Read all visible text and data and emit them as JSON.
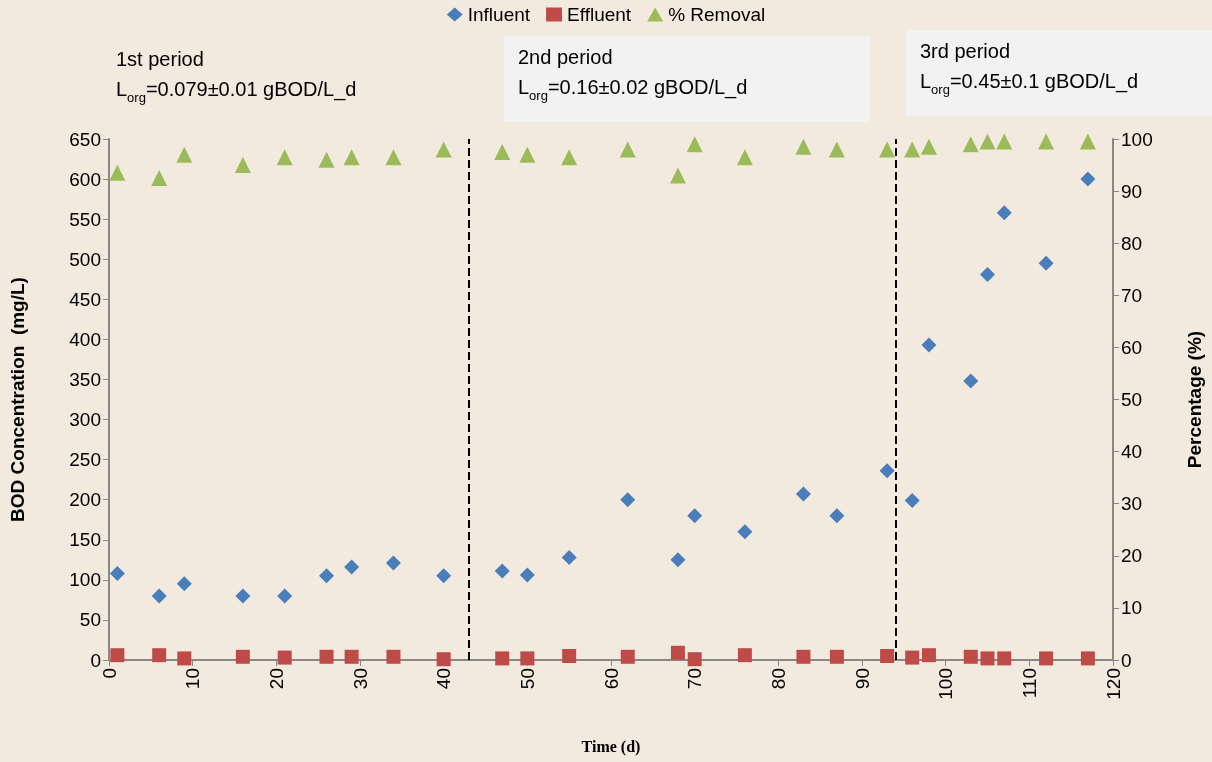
{
  "chart_data": {
    "type": "scatter",
    "xlabel": "Time (d)",
    "ylabel": "BOD Concentration  (mg/L)",
    "y2label": "Percentage (%)",
    "x": [
      1,
      6,
      9,
      16,
      21,
      26,
      29,
      34,
      40,
      47,
      50,
      55,
      62,
      68,
      70,
      76,
      83,
      87,
      93,
      96,
      98,
      103,
      105,
      107,
      112,
      117
    ],
    "series": [
      {
        "name": "Influent",
        "color": "#4a7ebb",
        "marker": "diamond",
        "values": [
          108,
          80,
          95,
          80,
          80,
          105,
          116,
          121,
          105,
          111,
          106,
          128,
          200,
          125,
          180,
          160,
          207,
          180,
          236,
          199,
          393,
          348,
          481,
          558,
          495,
          600
        ]
      },
      {
        "name": "Effluent",
        "color": "#be4b48",
        "marker": "square",
        "values": [
          6,
          6,
          2,
          4,
          3,
          4,
          4,
          4,
          1,
          2,
          2,
          5,
          4,
          9,
          1,
          6,
          4,
          4,
          5,
          3,
          6,
          4,
          2,
          2,
          2,
          2
        ]
      },
      {
        "name": "% Removal",
        "color": "#9bbb59",
        "marker": "triangle",
        "axis": "y2",
        "values": [
          93.5,
          92.5,
          97,
          95,
          96.5,
          96,
          96.5,
          96.5,
          98,
          97.5,
          97,
          96.5,
          98,
          93,
          99,
          96.5,
          98.5,
          98,
          98,
          98,
          98.5,
          99,
          99.5,
          99.5,
          99.5,
          99.5
        ]
      }
    ],
    "xlim": [
      0,
      120
    ],
    "xticks": [
      0,
      10,
      20,
      30,
      40,
      50,
      60,
      70,
      80,
      90,
      100,
      110,
      120
    ],
    "ylim": [
      0,
      650
    ],
    "yticks": [
      0,
      50,
      100,
      150,
      200,
      250,
      300,
      350,
      400,
      450,
      500,
      550,
      600,
      650
    ],
    "y2lim": [
      0,
      100
    ],
    "y2ticks": [
      0,
      10,
      20,
      30,
      40,
      50,
      60,
      70,
      80,
      90,
      100
    ],
    "ref_lines": [
      {
        "axis": "x",
        "value": 43,
        "color": "#000000",
        "line_style": "dashed"
      },
      {
        "axis": "x",
        "value": 94,
        "color": "#000000",
        "line_style": "dashed"
      }
    ],
    "annotations": [
      "1st period\nL$_{org}$=0.079±0.01 gBOD/L_d",
      "2nd period\nL$_{org}$=0.16±0.02 gBOD/L_d",
      "3rd period\nL$_{org}$=0.45±0.1 gBOD/L_d"
    ],
    "legend": "top",
    "grid": false
  }
}
